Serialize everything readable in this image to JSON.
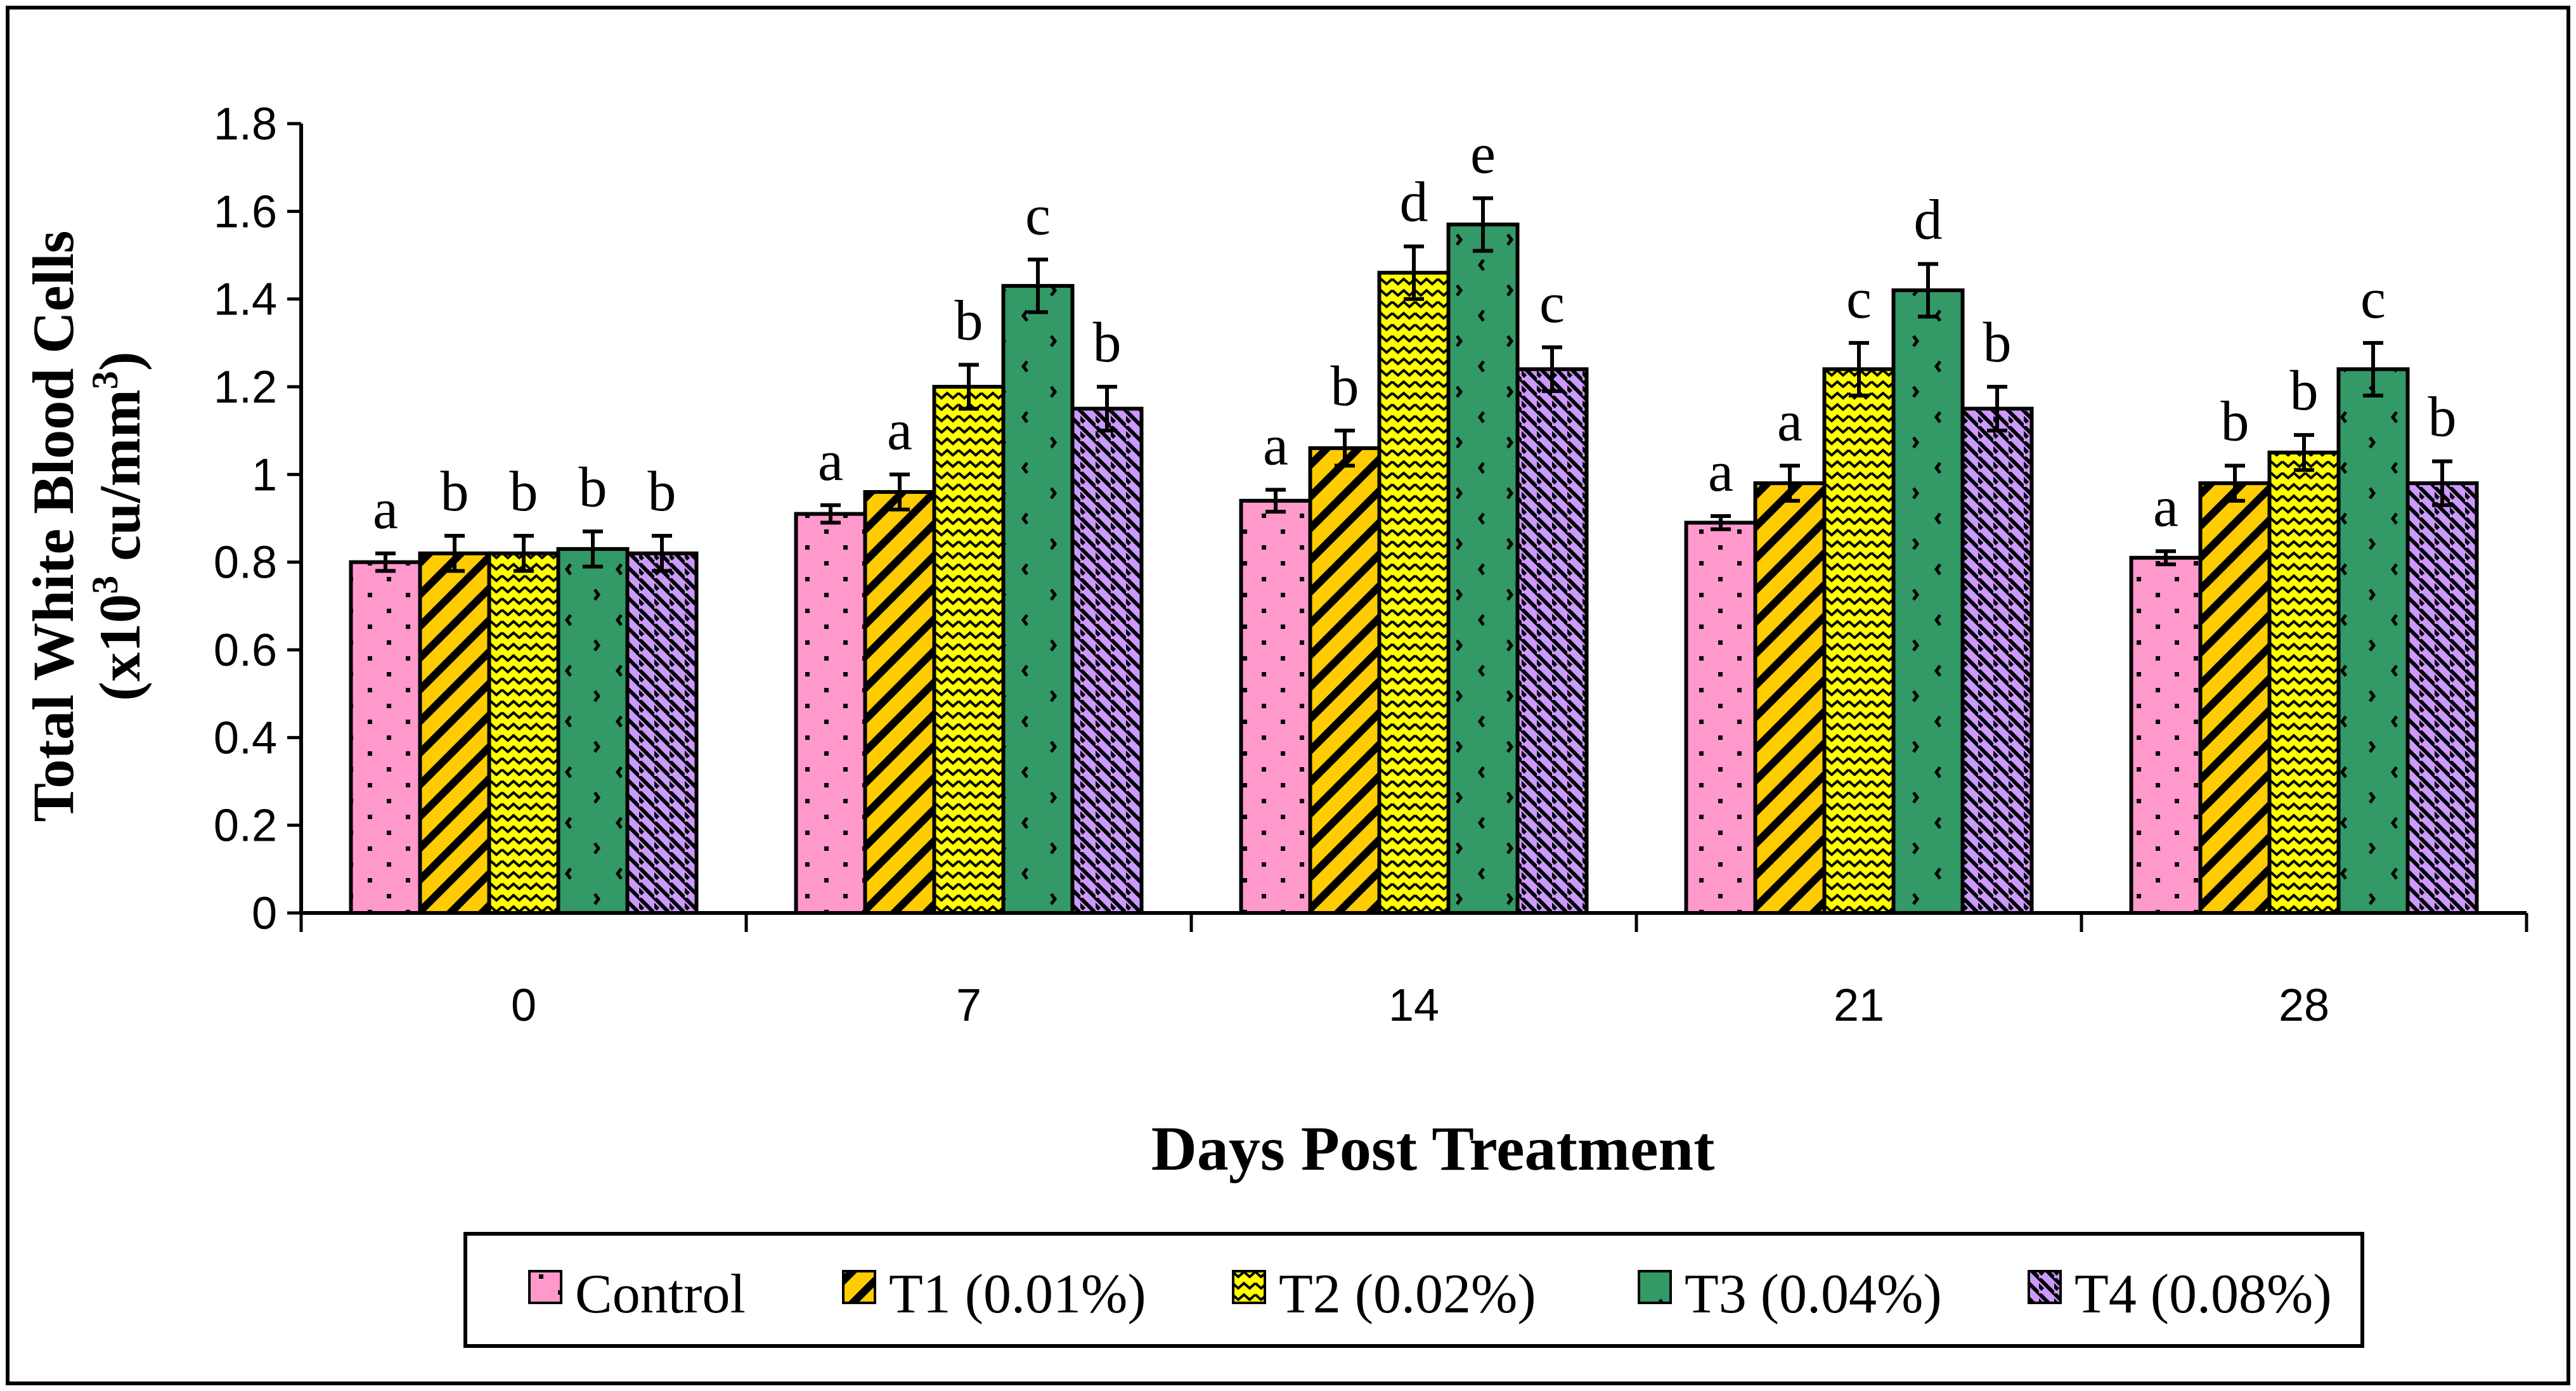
{
  "chart_data": {
    "type": "bar",
    "title": "",
    "xlabel": "Days Post Treatment",
    "ylabel_line1": "Total White Blood Cells",
    "ylabel_line2_prefix": "(x10",
    "ylabel_line2_sup1": "3",
    "ylabel_line2_mid": " cu/mm",
    "ylabel_line2_sup2": "3",
    "ylabel_line2_suffix": ")",
    "ylim": [
      0,
      1.8
    ],
    "yticks": [
      "0",
      "0.2",
      "0.4",
      "0.6",
      "0.8",
      "1",
      "1.2",
      "1.4",
      "1.6",
      "1.8"
    ],
    "categories": [
      "0",
      "7",
      "14",
      "21",
      "28"
    ],
    "grid": false,
    "legend_position": "bottom",
    "series": [
      {
        "name": "Control",
        "color": "#ff99cc",
        "pattern": "dots",
        "values": [
          0.8,
          0.91,
          0.94,
          0.89,
          0.81
        ],
        "errors": [
          0.02,
          0.02,
          0.025,
          0.015,
          0.015
        ],
        "labels": [
          "a",
          "a",
          "a",
          "a",
          "a"
        ]
      },
      {
        "name": "T1 (0.01%)",
        "color": "#ffcc00",
        "pattern": "diagonal",
        "values": [
          0.82,
          0.96,
          1.06,
          0.98,
          0.98
        ],
        "errors": [
          0.04,
          0.04,
          0.04,
          0.04,
          0.04
        ],
        "labels": [
          "b",
          "a",
          "b",
          "a",
          "b"
        ]
      },
      {
        "name": "T2 (0.02%)",
        "color": "#ffff00",
        "pattern": "zigzag",
        "values": [
          0.82,
          1.2,
          1.46,
          1.24,
          1.05
        ],
        "errors": [
          0.04,
          0.05,
          0.06,
          0.06,
          0.04
        ],
        "labels": [
          "b",
          "b",
          "d",
          "c",
          "b"
        ]
      },
      {
        "name": "T3 (0.04%)",
        "color": "#339966",
        "pattern": "dashes",
        "values": [
          0.83,
          1.43,
          1.57,
          1.42,
          1.24
        ],
        "errors": [
          0.04,
          0.06,
          0.06,
          0.06,
          0.06
        ],
        "labels": [
          "b",
          "c",
          "e",
          "d",
          "c"
        ]
      },
      {
        "name": "T4 (0.08%)",
        "color": "#cc99ff",
        "pattern": "stripes",
        "values": [
          0.82,
          1.15,
          1.24,
          1.15,
          0.98
        ],
        "errors": [
          0.04,
          0.05,
          0.05,
          0.05,
          0.05
        ],
        "labels": [
          "b",
          "b",
          "c",
          "b",
          "b"
        ]
      }
    ]
  }
}
